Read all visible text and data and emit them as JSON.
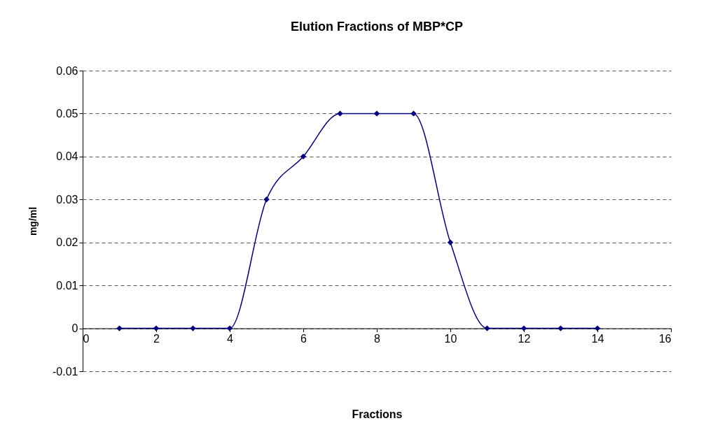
{
  "chart_data": {
    "type": "line",
    "title": "Elution Fractions of MBP*CP",
    "xlabel": "Fractions",
    "ylabel": "mg/ml",
    "x": [
      1,
      2,
      3,
      4,
      5,
      6,
      7,
      8,
      9,
      10,
      11,
      12,
      13,
      14
    ],
    "series": [
      {
        "color": "#000080",
        "values": [
          0,
          0,
          0,
          0,
          0.03,
          0.04,
          0.05,
          0.05,
          0.05,
          0.02,
          0,
          0,
          0,
          0
        ]
      }
    ],
    "xlim": [
      0,
      16
    ],
    "xticks": [
      0,
      2,
      4,
      6,
      8,
      10,
      12,
      14,
      16
    ],
    "ylim": [
      -0.01,
      0.06
    ],
    "yticks": [
      -0.01,
      0,
      0.01,
      0.02,
      0.03,
      0.04,
      0.05,
      0.06
    ],
    "grid": "y",
    "marker": "diamond",
    "line_style": "solid"
  }
}
